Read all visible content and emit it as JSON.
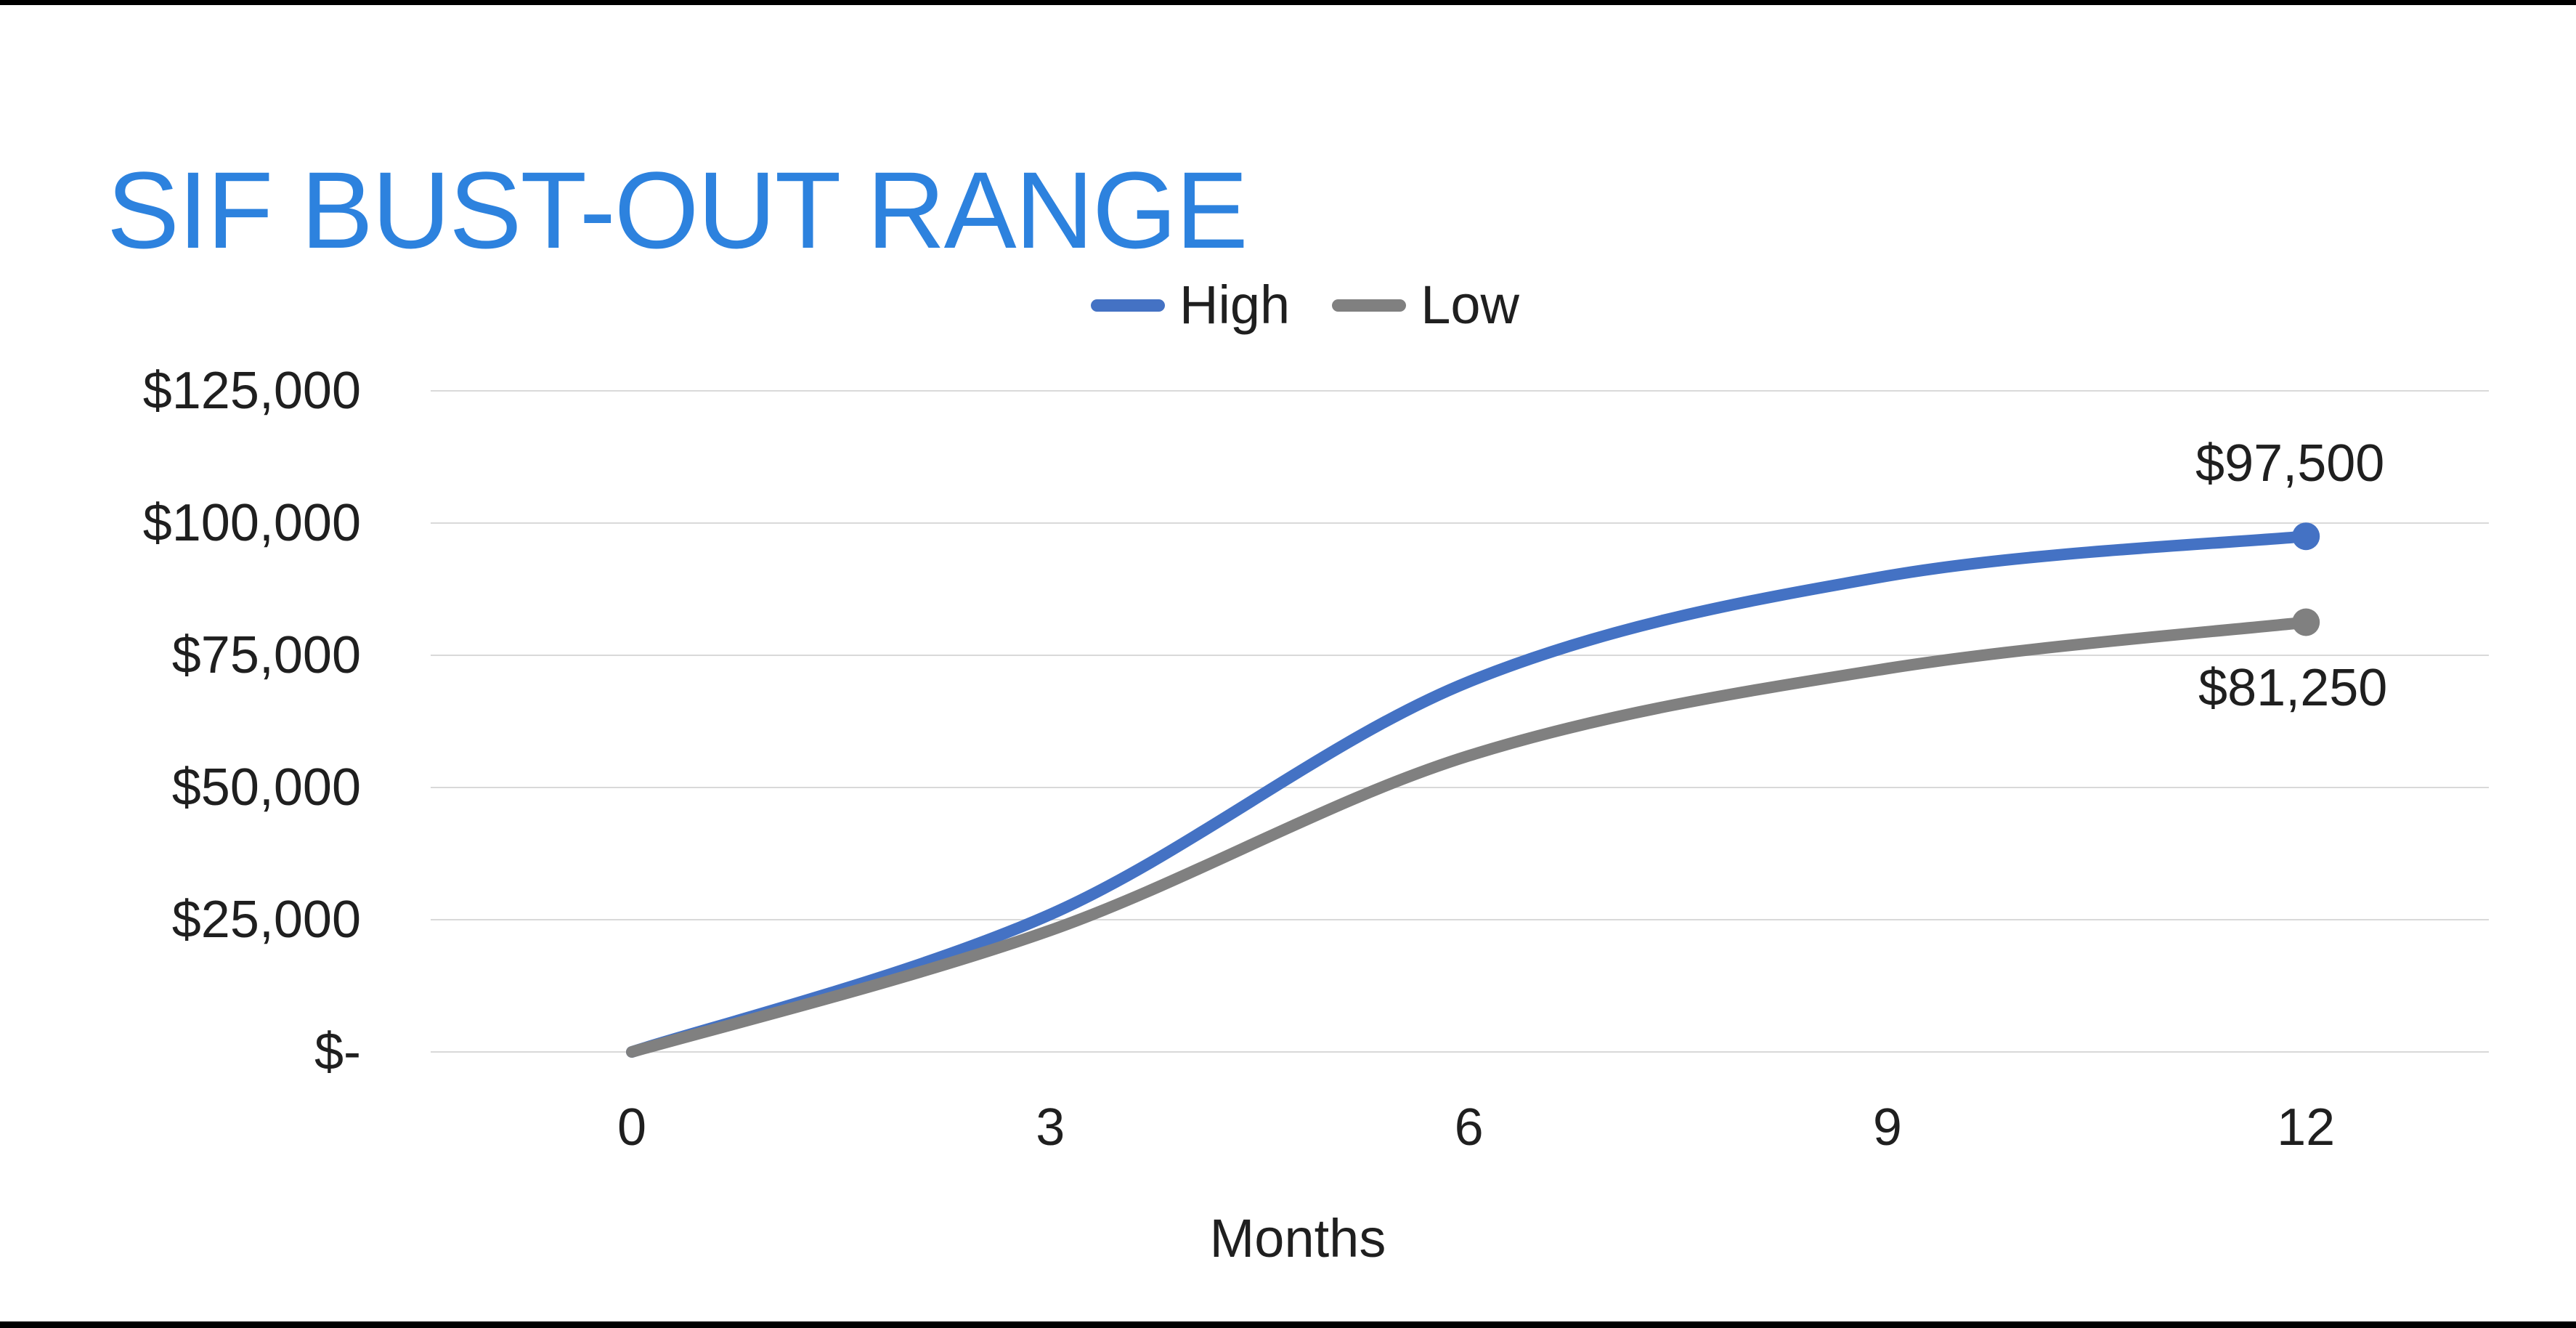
{
  "page": {
    "title": "SIF BUST-OUT RANGE",
    "title_color": "#2D82DE",
    "background_color": "#FFFFFF",
    "letterbox_color": "#000000"
  },
  "legend": {
    "items": [
      {
        "label": "High",
        "color": "#4472C4"
      },
      {
        "label": "Low",
        "color": "#808080"
      }
    ]
  },
  "chart_data": {
    "type": "line",
    "title": "SIF BUST-OUT RANGE",
    "xlabel": "Months",
    "ylabel": "",
    "smoothed": true,
    "grid": true,
    "legend_position": "top",
    "x": [
      0,
      3,
      6,
      9,
      12
    ],
    "x_tick_labels": [
      "0",
      "3",
      "6",
      "9",
      "12"
    ],
    "xlim": [
      0,
      12
    ],
    "ylim": [
      0,
      125000
    ],
    "y_ticks": [
      {
        "label": "$125,000",
        "value": 125000
      },
      {
        "label": "$100,000",
        "value": 100000
      },
      {
        "label": "$75,000",
        "value": 75000
      },
      {
        "label": "$50,000",
        "value": 50000
      },
      {
        "label": "$25,000",
        "value": 25000
      },
      {
        "label": "$-",
        "value": 0
      }
    ],
    "series": [
      {
        "name": "High",
        "color": "#4472C4",
        "values": [
          0,
          26000,
          70000,
          90000,
          97500
        ],
        "end_value": 97500,
        "end_label": "$97,500",
        "end_marker": true
      },
      {
        "name": "Low",
        "color": "#808080",
        "values": [
          0,
          23000,
          56000,
          72500,
          81250
        ],
        "end_value": 81250,
        "end_label": "$81,250",
        "end_marker": true
      }
    ],
    "gridline_color": "#D9D9D9",
    "axis_text_color": "#1F1F1F"
  }
}
